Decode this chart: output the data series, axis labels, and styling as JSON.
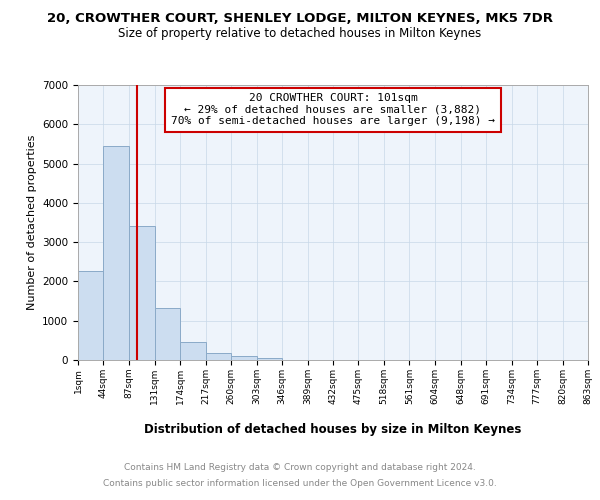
{
  "title": "20, CROWTHER COURT, SHENLEY LODGE, MILTON KEYNES, MK5 7DR",
  "subtitle": "Size of property relative to detached houses in Milton Keynes",
  "xlabel": "Distribution of detached houses by size in Milton Keynes",
  "ylabel": "Number of detached properties",
  "footnote1": "Contains HM Land Registry data © Crown copyright and database right 2024.",
  "footnote2": "Contains public sector information licensed under the Open Government Licence v3.0.",
  "bin_edges": [
    1,
    44,
    87,
    131,
    174,
    217,
    260,
    303,
    346,
    389,
    432,
    475,
    518,
    561,
    604,
    648,
    691,
    734,
    777,
    820,
    863
  ],
  "bin_labels": [
    "1sqm",
    "44sqm",
    "87sqm",
    "131sqm",
    "174sqm",
    "217sqm",
    "260sqm",
    "303sqm",
    "346sqm",
    "389sqm",
    "432sqm",
    "475sqm",
    "518sqm",
    "561sqm",
    "604sqm",
    "648sqm",
    "691sqm",
    "734sqm",
    "777sqm",
    "820sqm",
    "863sqm"
  ],
  "counts": [
    2270,
    5450,
    3400,
    1330,
    450,
    175,
    100,
    50,
    10,
    5,
    3,
    2,
    1,
    1,
    0,
    0,
    0,
    0,
    0,
    0
  ],
  "bar_color": "#ccddf0",
  "bar_edgecolor": "#8aaac8",
  "property_size": 101,
  "vline_color": "#cc0000",
  "ylim": [
    0,
    7000
  ],
  "yticks": [
    0,
    1000,
    2000,
    3000,
    4000,
    5000,
    6000,
    7000
  ],
  "annotation_text": "20 CROWTHER COURT: 101sqm\n← 29% of detached houses are smaller (3,882)\n70% of semi-detached houses are larger (9,198) →",
  "annotation_box_color": "#ffffff",
  "annotation_box_edgecolor": "#cc0000",
  "title_fontsize": 9.5,
  "subtitle_fontsize": 8.5,
  "xlabel_fontsize": 8.5,
  "ylabel_fontsize": 8,
  "footnote_fontsize": 6.5,
  "annotation_fontsize": 8,
  "background_color": "#ffffff",
  "grid_color": "#c8d8e8",
  "axes_bg_color": "#eef4fb"
}
